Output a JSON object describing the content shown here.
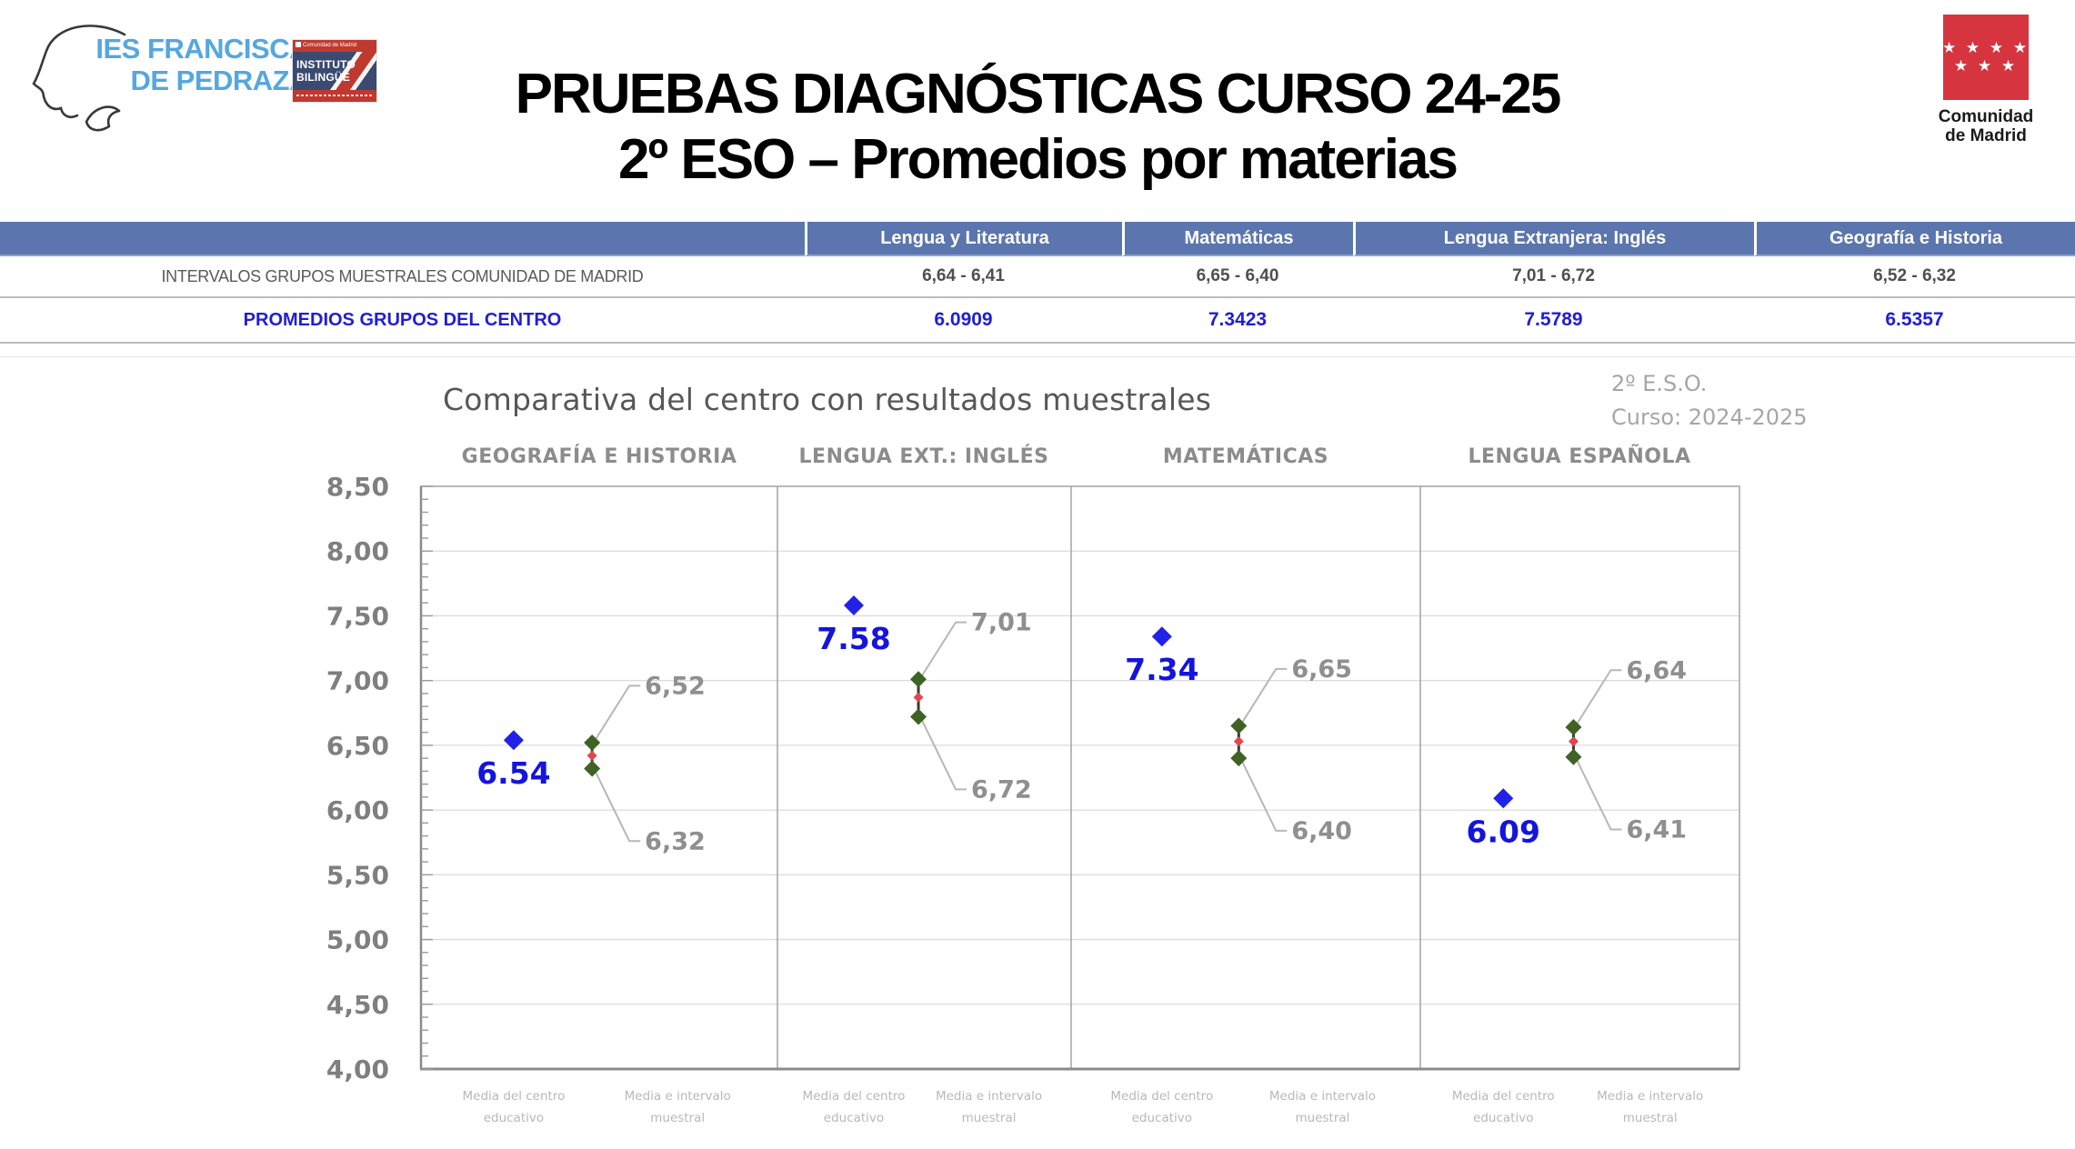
{
  "school_logo": {
    "line1": "IES FRANCISCA",
    "line2": "DE PEDRAZA",
    "badge_top": "Comunidad de Madrid",
    "badge_line1": "INSTITUTO",
    "badge_line2": "BILINGÜE"
  },
  "madrid_logo": {
    "stars_row1": "★ ★ ★ ★",
    "stars_row2": "★ ★ ★",
    "name_line1": "Comunidad",
    "name_line2": "de Madrid",
    "flag_red": "#d6353f"
  },
  "header": {
    "title_line1": "PRUEBAS DIAGNÓSTICAS CURSO 24-25",
    "title_line2": "2º ESO – Promedios por materias"
  },
  "table": {
    "header_bg": "#5b76ae",
    "accent_blue": "#1f1fd2",
    "header": [
      "",
      "Lengua y Literatura",
      "Matemáticas",
      "Lengua Extranjera: Inglés",
      "Geografía e Historia"
    ],
    "rows": [
      {
        "label": "INTERVALOS GRUPOS MUESTRALES COMUNIDAD DE MADRID",
        "values": [
          "6,64 - 6,41",
          "6,65 - 6,40",
          "7,01 - 6,72",
          "6,52 - 6,32"
        ]
      },
      {
        "label": "PROMEDIOS GRUPOS DEL CENTRO",
        "values": [
          "6.0909",
          "7.3423",
          "7.5789",
          "6.5357"
        ]
      }
    ]
  },
  "chart_data": {
    "type": "scatter",
    "title": "Comparativa del centro con resultados muestrales",
    "annotation_line1": "2º E.S.O.",
    "annotation_line2": "Curso: 2024-2025",
    "ylim": [
      4.0,
      8.5
    ],
    "ytick_step": 0.5,
    "grid": "horizontal-majors",
    "legend_position": "none",
    "ytick_labels": [
      "8,50",
      "8,00",
      "7,50",
      "7,00",
      "6,50",
      "6,00",
      "5,50",
      "5,00",
      "4,50",
      "4,00"
    ],
    "x_categories": [
      [
        "Media del centro",
        "educativo"
      ],
      [
        "Media e intervalo",
        "muestral"
      ]
    ],
    "panels": [
      {
        "title": "GEOGRAFÍA E HISTORIA",
        "center_mean": 6.54,
        "center_label": "6.54",
        "interval_high": 6.52,
        "interval_high_label": "6,52",
        "interval_low": 6.32,
        "interval_low_label": "6,32",
        "interval_mid": 6.42
      },
      {
        "title": "LENGUA EXT.: INGLÉS",
        "center_mean": 7.58,
        "center_label": "7.58",
        "interval_high": 7.01,
        "interval_high_label": "7,01",
        "interval_low": 6.72,
        "interval_low_label": "6,72",
        "interval_mid": 6.87
      },
      {
        "title": "MATEMÁTICAS",
        "center_mean": 7.34,
        "center_label": "7.34",
        "interval_high": 6.65,
        "interval_high_label": "6,65",
        "interval_low": 6.4,
        "interval_low_label": "6,40",
        "interval_mid": 6.53
      },
      {
        "title": "LENGUA ESPAÑOLA",
        "center_mean": 6.09,
        "center_label": "6.09",
        "interval_high": 6.64,
        "interval_high_label": "6,64",
        "interval_low": 6.41,
        "interval_low_label": "6,41",
        "interval_mid": 6.53
      }
    ],
    "colors": {
      "center": "#2121e8",
      "interval": "#3e6325",
      "mid": "#e0484e",
      "leader": "#b7b7b7",
      "gridline": "#dcdcdc",
      "axis": "#8a8a8a"
    }
  }
}
